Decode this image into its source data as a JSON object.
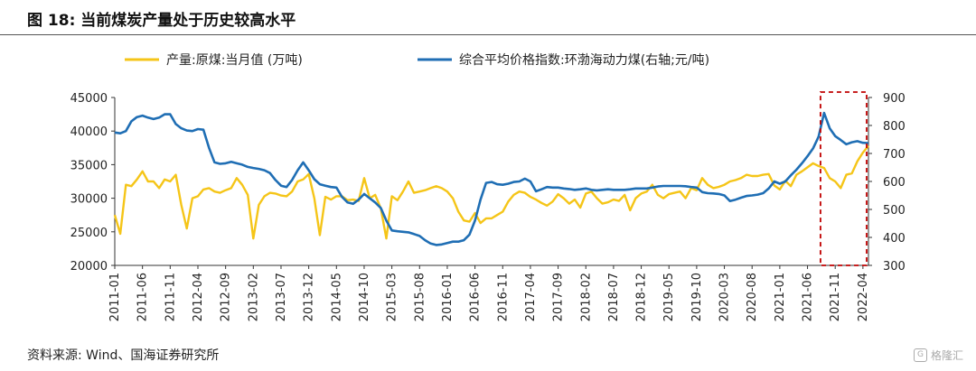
{
  "header": {
    "title": "图 18:  当前煤炭产量处于历史较高水平"
  },
  "footer": {
    "source": "资料来源: Wind、国海证券研究所",
    "watermark": "格隆汇"
  },
  "chart_data": {
    "type": "line",
    "legend_placement": "top",
    "grid": false,
    "x_tick_labels": [
      "2011-01",
      "2011-06",
      "2011-11",
      "2012-04",
      "2012-09",
      "2013-02",
      "2013-07",
      "2013-12",
      "2014-05",
      "2014-10",
      "2015-03",
      "2015-08",
      "2016-01",
      "2016-06",
      "2016-11",
      "2017-04",
      "2017-09",
      "2018-02",
      "2018-07",
      "2018-12",
      "2019-05",
      "2019-10",
      "2020-03",
      "2020-08",
      "2021-01",
      "2021-06",
      "2021-11",
      "2022-04"
    ],
    "x_range": [
      "2011-01",
      "2022-05"
    ],
    "y_left": {
      "range": [
        20000,
        45000
      ],
      "ticks": [
        "20000",
        "25000",
        "30000",
        "35000",
        "40000",
        "45000"
      ]
    },
    "y_right": {
      "range": [
        300,
        900
      ],
      "ticks": [
        "300",
        "400",
        "500",
        "600",
        "700",
        "800",
        "900"
      ]
    },
    "highlight_box": {
      "from": "2021-09",
      "to": "2022-05",
      "color": "#c00000"
    },
    "series": [
      {
        "name": "产量:原煤:当月值 (万吨)",
        "axis": "left",
        "color": "#f5c518",
        "points": [
          [
            "2011-01",
            27500
          ],
          [
            "2011-02",
            24700
          ],
          [
            "2011-03",
            32000
          ],
          [
            "2011-04",
            31800
          ],
          [
            "2011-05",
            32800
          ],
          [
            "2011-06",
            34000
          ],
          [
            "2011-07",
            32500
          ],
          [
            "2011-08",
            32500
          ],
          [
            "2011-09",
            31500
          ],
          [
            "2011-10",
            32800
          ],
          [
            "2011-11",
            32500
          ],
          [
            "2011-12",
            33500
          ],
          [
            "2012-01",
            29000
          ],
          [
            "2012-02",
            25500
          ],
          [
            "2012-03",
            30000
          ],
          [
            "2012-04",
            30300
          ],
          [
            "2012-05",
            31300
          ],
          [
            "2012-06",
            31500
          ],
          [
            "2012-07",
            31000
          ],
          [
            "2012-08",
            30800
          ],
          [
            "2012-09",
            31200
          ],
          [
            "2012-10",
            31500
          ],
          [
            "2012-11",
            33000
          ],
          [
            "2012-12",
            32000
          ],
          [
            "2013-01",
            30500
          ],
          [
            "2013-02",
            24000
          ],
          [
            "2013-03",
            29000
          ],
          [
            "2013-04",
            30300
          ],
          [
            "2013-05",
            30800
          ],
          [
            "2013-06",
            30700
          ],
          [
            "2013-07",
            30400
          ],
          [
            "2013-08",
            30300
          ],
          [
            "2013-09",
            31000
          ],
          [
            "2013-10",
            32500
          ],
          [
            "2013-11",
            32800
          ],
          [
            "2013-12",
            33600
          ],
          [
            "2014-01",
            30000
          ],
          [
            "2014-02",
            24500
          ],
          [
            "2014-03",
            30200
          ],
          [
            "2014-04",
            29800
          ],
          [
            "2014-05",
            30300
          ],
          [
            "2014-06",
            30300
          ],
          [
            "2014-07",
            29700
          ],
          [
            "2014-08",
            29800
          ],
          [
            "2014-09",
            29600
          ],
          [
            "2014-10",
            33000
          ],
          [
            "2014-11",
            30000
          ],
          [
            "2014-12",
            30500
          ],
          [
            "2015-01",
            28500
          ],
          [
            "2015-02",
            24000
          ],
          [
            "2015-03",
            30300
          ],
          [
            "2015-04",
            29700
          ],
          [
            "2015-05",
            31000
          ],
          [
            "2015-06",
            32500
          ],
          [
            "2015-07",
            30800
          ],
          [
            "2015-08",
            31000
          ],
          [
            "2015-09",
            31200
          ],
          [
            "2015-10",
            31500
          ],
          [
            "2015-11",
            31800
          ],
          [
            "2015-12",
            31500
          ],
          [
            "2016-01",
            31000
          ],
          [
            "2016-02",
            30000
          ],
          [
            "2016-03",
            28000
          ],
          [
            "2016-04",
            26700
          ],
          [
            "2016-05",
            26500
          ],
          [
            "2016-06",
            27800
          ],
          [
            "2016-07",
            26300
          ],
          [
            "2016-08",
            27000
          ],
          [
            "2016-09",
            27000
          ],
          [
            "2016-10",
            27500
          ],
          [
            "2016-11",
            28000
          ],
          [
            "2016-12",
            29500
          ],
          [
            "2017-01",
            30500
          ],
          [
            "2017-02",
            31000
          ],
          [
            "2017-03",
            30800
          ],
          [
            "2017-04",
            30200
          ],
          [
            "2017-05",
            29800
          ],
          [
            "2017-06",
            29300
          ],
          [
            "2017-07",
            28900
          ],
          [
            "2017-08",
            29500
          ],
          [
            "2017-09",
            30600
          ],
          [
            "2017-10",
            30000
          ],
          [
            "2017-11",
            29200
          ],
          [
            "2017-12",
            29800
          ],
          [
            "2018-01",
            28600
          ],
          [
            "2018-02",
            30700
          ],
          [
            "2018-03",
            31000
          ],
          [
            "2018-04",
            30000
          ],
          [
            "2018-05",
            29200
          ],
          [
            "2018-06",
            29400
          ],
          [
            "2018-07",
            29800
          ],
          [
            "2018-08",
            29600
          ],
          [
            "2018-09",
            30500
          ],
          [
            "2018-10",
            28200
          ],
          [
            "2018-11",
            30000
          ],
          [
            "2018-12",
            30700
          ],
          [
            "2019-01",
            31000
          ],
          [
            "2019-02",
            32000
          ],
          [
            "2019-03",
            30500
          ],
          [
            "2019-04",
            30000
          ],
          [
            "2019-05",
            30600
          ],
          [
            "2019-06",
            30800
          ],
          [
            "2019-07",
            31000
          ],
          [
            "2019-08",
            30000
          ],
          [
            "2019-09",
            31500
          ],
          [
            "2019-10",
            31200
          ],
          [
            "2019-11",
            33000
          ],
          [
            "2019-12",
            32000
          ],
          [
            "2020-01",
            31500
          ],
          [
            "2020-02",
            31700
          ],
          [
            "2020-03",
            32000
          ],
          [
            "2020-04",
            32500
          ],
          [
            "2020-05",
            32700
          ],
          [
            "2020-06",
            33000
          ],
          [
            "2020-07",
            33500
          ],
          [
            "2020-08",
            33300
          ],
          [
            "2020-09",
            33300
          ],
          [
            "2020-10",
            33500
          ],
          [
            "2020-11",
            33600
          ],
          [
            "2020-12",
            31900
          ],
          [
            "2021-01",
            31300
          ],
          [
            "2021-02",
            32600
          ],
          [
            "2021-03",
            31800
          ],
          [
            "2021-04",
            33500
          ],
          [
            "2021-05",
            34000
          ],
          [
            "2021-06",
            34600
          ],
          [
            "2021-07",
            35200
          ],
          [
            "2021-08",
            34800
          ],
          [
            "2021-09",
            34500
          ],
          [
            "2021-10",
            33000
          ],
          [
            "2021-11",
            32500
          ],
          [
            "2021-12",
            31500
          ],
          [
            "2022-01",
            33500
          ],
          [
            "2022-02",
            33700
          ],
          [
            "2022-03",
            35500
          ],
          [
            "2022-04",
            36800
          ],
          [
            "2022-05",
            37800
          ]
        ]
      },
      {
        "name": "综合平均价格指数:环渤海动力煤(右轴;元/吨)",
        "axis": "right",
        "color": "#1f6eb4",
        "points": [
          [
            "2011-01",
            775
          ],
          [
            "2011-02",
            772
          ],
          [
            "2011-03",
            780
          ],
          [
            "2011-04",
            815
          ],
          [
            "2011-05",
            830
          ],
          [
            "2011-06",
            835
          ],
          [
            "2011-07",
            828
          ],
          [
            "2011-08",
            823
          ],
          [
            "2011-09",
            828
          ],
          [
            "2011-10",
            840
          ],
          [
            "2011-11",
            840
          ],
          [
            "2011-12",
            805
          ],
          [
            "2012-01",
            790
          ],
          [
            "2012-02",
            782
          ],
          [
            "2012-03",
            780
          ],
          [
            "2012-04",
            787
          ],
          [
            "2012-05",
            785
          ],
          [
            "2012-06",
            720
          ],
          [
            "2012-07",
            668
          ],
          [
            "2012-08",
            663
          ],
          [
            "2012-09",
            665
          ],
          [
            "2012-10",
            670
          ],
          [
            "2012-11",
            665
          ],
          [
            "2012-12",
            660
          ],
          [
            "2013-01",
            652
          ],
          [
            "2013-02",
            648
          ],
          [
            "2013-03",
            645
          ],
          [
            "2013-04",
            640
          ],
          [
            "2013-05",
            630
          ],
          [
            "2013-06",
            605
          ],
          [
            "2013-07",
            585
          ],
          [
            "2013-08",
            580
          ],
          [
            "2013-09",
            605
          ],
          [
            "2013-10",
            640
          ],
          [
            "2013-11",
            668
          ],
          [
            "2013-12",
            640
          ],
          [
            "2014-01",
            608
          ],
          [
            "2014-02",
            590
          ],
          [
            "2014-03",
            585
          ],
          [
            "2014-04",
            580
          ],
          [
            "2014-05",
            578
          ],
          [
            "2014-06",
            545
          ],
          [
            "2014-07",
            525
          ],
          [
            "2014-08",
            520
          ],
          [
            "2014-09",
            535
          ],
          [
            "2014-10",
            555
          ],
          [
            "2014-11",
            540
          ],
          [
            "2014-12",
            525
          ],
          [
            "2015-01",
            505
          ],
          [
            "2015-02",
            460
          ],
          [
            "2015-03",
            425
          ],
          [
            "2015-04",
            422
          ],
          [
            "2015-05",
            420
          ],
          [
            "2015-06",
            418
          ],
          [
            "2015-07",
            412
          ],
          [
            "2015-08",
            405
          ],
          [
            "2015-09",
            390
          ],
          [
            "2015-10",
            378
          ],
          [
            "2015-11",
            373
          ],
          [
            "2015-12",
            375
          ],
          [
            "2016-01",
            380
          ],
          [
            "2016-02",
            385
          ],
          [
            "2016-03",
            385
          ],
          [
            "2016-04",
            390
          ],
          [
            "2016-05",
            410
          ],
          [
            "2016-06",
            460
          ],
          [
            "2016-07",
            535
          ],
          [
            "2016-08",
            595
          ],
          [
            "2016-09",
            598
          ],
          [
            "2016-10",
            590
          ],
          [
            "2016-11",
            588
          ],
          [
            "2016-12",
            592
          ],
          [
            "2017-01",
            598
          ],
          [
            "2017-02",
            600
          ],
          [
            "2017-03",
            610
          ],
          [
            "2017-04",
            600
          ],
          [
            "2017-05",
            565
          ],
          [
            "2017-06",
            572
          ],
          [
            "2017-07",
            580
          ],
          [
            "2017-08",
            578
          ],
          [
            "2017-09",
            578
          ],
          [
            "2017-10",
            575
          ],
          [
            "2017-11",
            573
          ],
          [
            "2017-12",
            570
          ],
          [
            "2018-01",
            572
          ],
          [
            "2018-02",
            575
          ],
          [
            "2018-03",
            570
          ],
          [
            "2018-04",
            568
          ],
          [
            "2018-05",
            570
          ],
          [
            "2018-06",
            572
          ],
          [
            "2018-07",
            570
          ],
          [
            "2018-08",
            570
          ],
          [
            "2018-09",
            570
          ],
          [
            "2018-10",
            572
          ],
          [
            "2018-11",
            575
          ],
          [
            "2018-12",
            575
          ],
          [
            "2019-01",
            575
          ],
          [
            "2019-02",
            578
          ],
          [
            "2019-03",
            582
          ],
          [
            "2019-04",
            584
          ],
          [
            "2019-05",
            584
          ],
          [
            "2019-06",
            584
          ],
          [
            "2019-07",
            584
          ],
          [
            "2019-08",
            583
          ],
          [
            "2019-09",
            580
          ],
          [
            "2019-10",
            578
          ],
          [
            "2019-11",
            562
          ],
          [
            "2019-12",
            558
          ],
          [
            "2020-01",
            557
          ],
          [
            "2020-02",
            555
          ],
          [
            "2020-03",
            550
          ],
          [
            "2020-04",
            530
          ],
          [
            "2020-05",
            535
          ],
          [
            "2020-06",
            542
          ],
          [
            "2020-07",
            548
          ],
          [
            "2020-08",
            550
          ],
          [
            "2020-09",
            553
          ],
          [
            "2020-10",
            558
          ],
          [
            "2020-11",
            575
          ],
          [
            "2020-12",
            600
          ],
          [
            "2021-01",
            592
          ],
          [
            "2021-02",
            600
          ],
          [
            "2021-03",
            622
          ],
          [
            "2021-04",
            642
          ],
          [
            "2021-05",
            665
          ],
          [
            "2021-06",
            690
          ],
          [
            "2021-07",
            718
          ],
          [
            "2021-08",
            760
          ],
          [
            "2021-09",
            845
          ],
          [
            "2021-10",
            790
          ],
          [
            "2021-11",
            762
          ],
          [
            "2021-12",
            748
          ],
          [
            "2022-01",
            733
          ],
          [
            "2022-02",
            740
          ],
          [
            "2022-03",
            744
          ],
          [
            "2022-04",
            738
          ],
          [
            "2022-05",
            737
          ]
        ]
      }
    ]
  }
}
